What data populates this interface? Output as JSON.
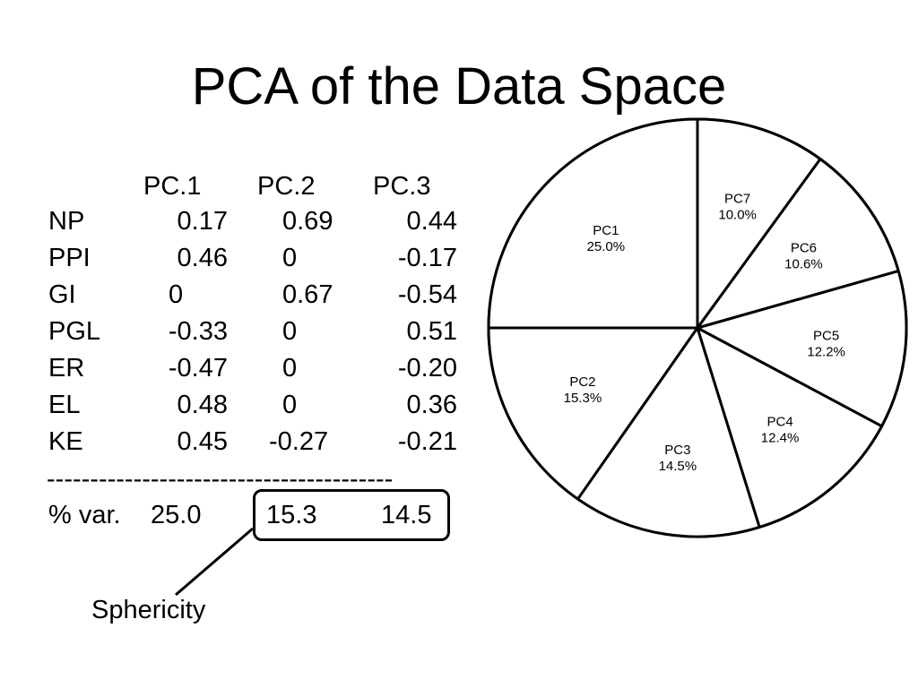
{
  "title": "PCA of the Data Space",
  "table": {
    "columns": [
      "PC.1",
      "PC.2",
      "PC.3"
    ],
    "rows": [
      {
        "label": "NP",
        "values": [
          "0.17",
          "0.69",
          "0.44"
        ]
      },
      {
        "label": "PPI",
        "values": [
          "0.46",
          "0",
          "-0.17"
        ]
      },
      {
        "label": "GI",
        "values": [
          "0",
          "0.67",
          "-0.54"
        ]
      },
      {
        "label": "PGL",
        "values": [
          "-0.33",
          "0",
          "0.51"
        ]
      },
      {
        "label": "ER",
        "values": [
          "-0.47",
          "0",
          "-0.20"
        ]
      },
      {
        "label": "EL",
        "values": [
          "0.48",
          "0",
          "0.36"
        ]
      },
      {
        "label": "KE",
        "values": [
          "0.45",
          "-0.27",
          "-0.21"
        ]
      }
    ],
    "separator": "----------------------------------------",
    "var_row": {
      "label": "% var.",
      "values": [
        "25.0",
        "15.3",
        "14.5"
      ]
    }
  },
  "callout": {
    "label": "Sphericity"
  },
  "chart_data": {
    "type": "pie",
    "slices": [
      {
        "name": "PC1",
        "label": "25.0%",
        "value": 25.0
      },
      {
        "name": "PC2",
        "label": "15.3%",
        "value": 15.3
      },
      {
        "name": "PC3",
        "label": "14.5%",
        "value": 14.5
      },
      {
        "name": "PC4",
        "label": "12.4%",
        "value": 12.4
      },
      {
        "name": "PC5",
        "label": "12.2%",
        "value": 12.2
      },
      {
        "name": "PC6",
        "label": "10.6%",
        "value": 10.6
      },
      {
        "name": "PC7",
        "label": "10.0%",
        "value": 10.0
      }
    ]
  }
}
